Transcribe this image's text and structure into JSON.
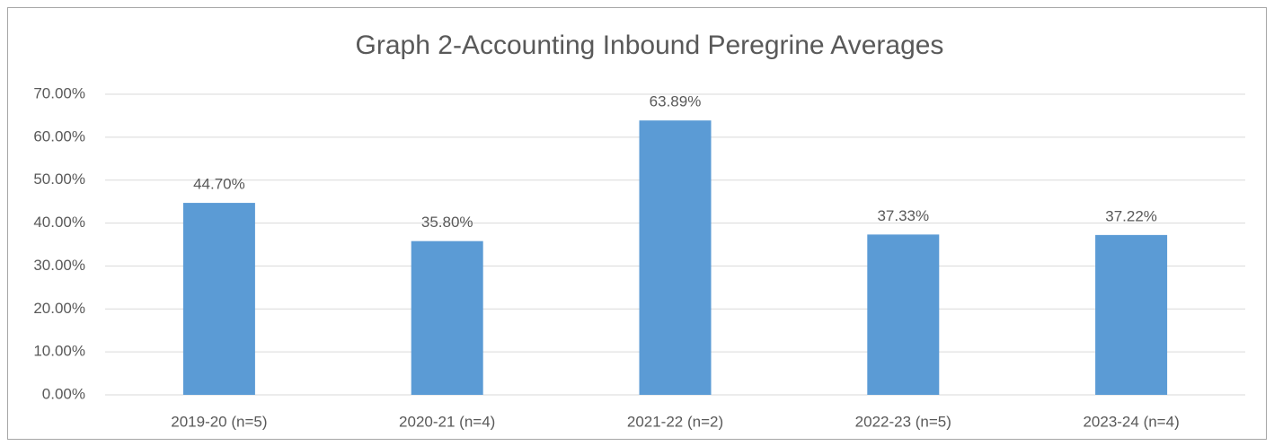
{
  "chart_data": {
    "type": "bar",
    "title": "Graph 2-Accounting Inbound Peregrine Averages",
    "categories": [
      "2019-20 (n=5)",
      "2020-21 (n=4)",
      "2021-22 (n=2)",
      "2022-23 (n=5)",
      "2023-24 (n=4)"
    ],
    "values": [
      44.7,
      35.8,
      63.89,
      37.33,
      37.22
    ],
    "value_labels": [
      "44.70%",
      "35.80%",
      "63.89%",
      "37.33%",
      "37.22%"
    ],
    "color": "#5b9bd5",
    "ylim": [
      0,
      70
    ],
    "yticks": [
      {
        "value": 0,
        "label": "0.00%"
      },
      {
        "value": 10,
        "label": "10.00%"
      },
      {
        "value": 20,
        "label": "20.00%"
      },
      {
        "value": 30,
        "label": "30.00%"
      },
      {
        "value": 40,
        "label": "40.00%"
      },
      {
        "value": 50,
        "label": "50.00%"
      },
      {
        "value": 60,
        "label": "60.00%"
      },
      {
        "value": 70,
        "label": "70.00%"
      }
    ],
    "grid": true
  }
}
